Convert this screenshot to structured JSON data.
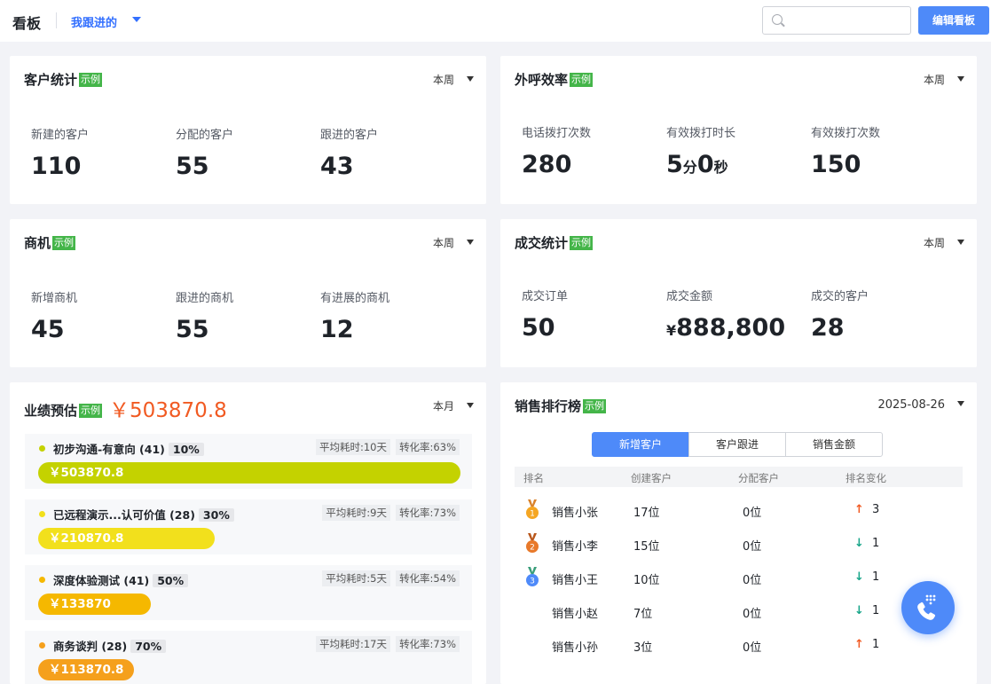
{
  "topbar": {
    "title": "看板",
    "filter_label": "我跟进的",
    "search_placeholder": "",
    "edit_button": "编辑看板"
  },
  "sample_badge": "示例",
  "customer_stats": {
    "title": "客户统计",
    "period": "本周",
    "items": [
      {
        "label": "新建的客户",
        "value": "110"
      },
      {
        "label": "分配的客户",
        "value": "55"
      },
      {
        "label": "跟进的客户",
        "value": "43"
      }
    ]
  },
  "call_efficiency": {
    "title": "外呼效率",
    "period": "本周",
    "items": [
      {
        "label": "电话拨打次数",
        "value": "280"
      },
      {
        "label": "有效拨打时长",
        "min": "5",
        "min_unit": "分",
        "sec": "0",
        "sec_unit": "秒"
      },
      {
        "label": "有效拨打次数",
        "value": "150"
      }
    ]
  },
  "opportunities": {
    "title": "商机",
    "period": "本周",
    "items": [
      {
        "label": "新增商机",
        "value": "45"
      },
      {
        "label": "跟进的商机",
        "value": "55"
      },
      {
        "label": "有进展的商机",
        "value": "12"
      }
    ]
  },
  "deals": {
    "title": "成交统计",
    "period": "本周",
    "items": [
      {
        "label": "成交订单",
        "value": "50"
      },
      {
        "label": "成交金额",
        "currency": "¥",
        "value": "888,800"
      },
      {
        "label": "成交的客户",
        "value": "28"
      }
    ]
  },
  "performance": {
    "title": "业绩预估",
    "amount": "￥503870.8",
    "period": "本月",
    "stages": [
      {
        "name": "初步沟通-有意向 (41)",
        "pct": "10%",
        "avg": "平均耗时:10天",
        "rate": "转化率:63%",
        "amount": "￥503870.8",
        "fill": 1.0,
        "color": "#c4d200"
      },
      {
        "name": "已远程演示...认可价值 (28)",
        "pct": "30%",
        "avg": "平均耗时:9天",
        "rate": "转化率:73%",
        "amount": "￥210870.8",
        "fill": 0.418,
        "color": "#f2e01c"
      },
      {
        "name": "深度体验测试 (41)",
        "pct": "50%",
        "avg": "平均耗时:5天",
        "rate": "转化率:54%",
        "amount": "￥133870",
        "fill": 0.266,
        "color": "#f5b800"
      },
      {
        "name": "商务谈判 (28)",
        "pct": "70%",
        "avg": "平均耗时:17天",
        "rate": "转化率:73%",
        "amount": "￥113870.8",
        "fill": 0.226,
        "color": "#f5a01c"
      }
    ]
  },
  "ranking": {
    "title": "销售排行榜",
    "date": "2025-08-26",
    "tabs": [
      "新增客户",
      "客户跟进",
      "销售金额"
    ],
    "headers": {
      "rank": "排名",
      "created": "创建客户",
      "assigned": "分配客户",
      "change": "排名变化"
    },
    "rows": [
      {
        "name": "销售小张",
        "created": "17位",
        "assigned": "0位",
        "dir": "up",
        "change": "3",
        "medal": "1"
      },
      {
        "name": "销售小李",
        "created": "15位",
        "assigned": "0位",
        "dir": "down",
        "change": "1",
        "medal": "2"
      },
      {
        "name": "销售小王",
        "created": "10位",
        "assigned": "0位",
        "dir": "down",
        "change": "1",
        "medal": "3"
      },
      {
        "name": "销售小赵",
        "created": "7位",
        "assigned": "0位",
        "dir": "down",
        "change": "1",
        "medal": ""
      },
      {
        "name": "销售小孙",
        "created": "3位",
        "assigned": "0位",
        "dir": "up",
        "change": "1",
        "medal": ""
      }
    ],
    "up_arrow": "↑",
    "down_arrow": "↓"
  },
  "colors": {
    "accent": "#4e8af9",
    "badge": "#44b549",
    "amount": "#f15a22",
    "up": "#f15a22",
    "down": "#17a589"
  }
}
